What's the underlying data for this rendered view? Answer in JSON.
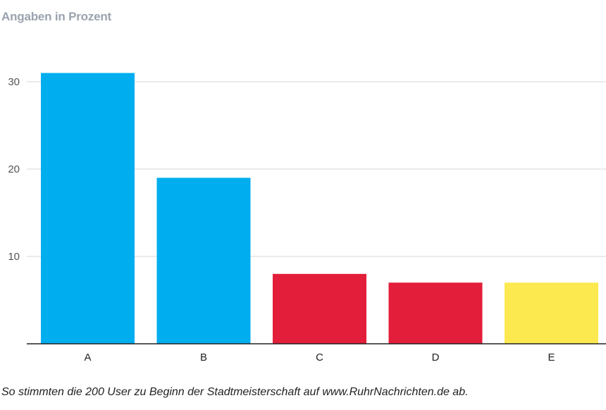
{
  "chart_data": {
    "type": "bar",
    "subtitle": "Angaben in Prozent",
    "categories": [
      "A",
      "B",
      "C",
      "D",
      "E"
    ],
    "values": [
      31,
      19,
      8,
      7,
      7
    ],
    "colors": [
      "#00aeef",
      "#00aeef",
      "#e31e3a",
      "#e31e3a",
      "#fbe94f"
    ],
    "ylim": [
      0,
      30.99
    ],
    "yticks": [
      "10",
      "20",
      "30"
    ],
    "ytick_values": [
      10,
      20,
      30
    ],
    "grid": true,
    "footnote": "So stimmten die 200 User zu Beginn der Stadtmeisterschaft auf www.RuhrNachrichten.de ab."
  }
}
